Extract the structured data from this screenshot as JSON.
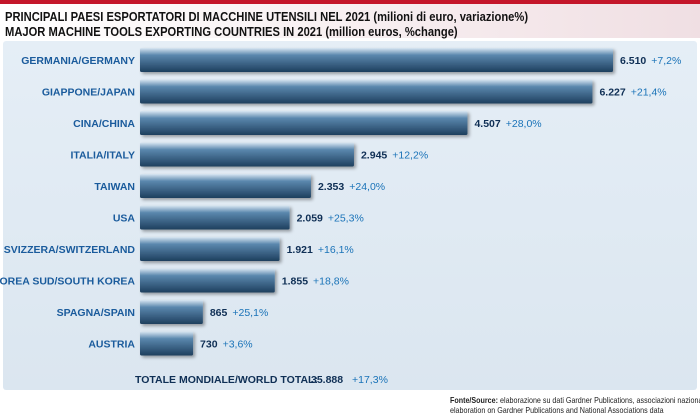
{
  "titles": {
    "line1": "PRINCIPALI PAESI ESPORTATORI DI MACCHINE UTENSILI NEL 2021 (milioni di euro, variazione%)",
    "line2": "MAJOR MACHINE TOOLS EXPORTING COUNTRIES IN 2021 (million euros, %change)"
  },
  "total": {
    "label": "TOTALE MONDIALE/WORLD TOTAL:",
    "value": "35.888",
    "change": "+17,3%"
  },
  "source": {
    "label": "Fonte/Source:",
    "line1": "elaborazione su dati Gardner Publications, associazioni nazionali/",
    "line2": "elaboration on Gardner Publications and National Associations data"
  },
  "colors": {
    "bar_fill": "#5a87ad",
    "bar_highlight": "#d8e6f2",
    "bar_dark": "#1e3f5e",
    "category_text": "#1a5b9c",
    "value_text": "#0f2f55",
    "change_text": "#1a73b8",
    "panel": "#e0eaf3",
    "accent_red": "#c4162a"
  },
  "chart_data": {
    "type": "bar",
    "orientation": "horizontal",
    "categories": [
      "GERMANIA/GERMANY",
      "GIAPPONE/JAPAN",
      "CINA/CHINA",
      "ITALIA/ITALY",
      "TAIWAN",
      "USA",
      "SVIZZERA/SWITZERLAND",
      "COREA SUD/SOUTH KOREA",
      "SPAGNA/SPAIN",
      "AUSTRIA"
    ],
    "values": [
      6510,
      6227,
      4507,
      2945,
      2353,
      2059,
      1921,
      1855,
      865,
      730
    ],
    "value_labels": [
      "6.510",
      "6.227",
      "4.507",
      "2.945",
      "2.353",
      "2.059",
      "1.921",
      "1.855",
      "865",
      "730"
    ],
    "change_labels": [
      "+7,2%",
      "+21,4%",
      "+28,0%",
      "+12,2%",
      "+24,0%",
      "+25,3%",
      "+16,1%",
      "+18,8%",
      "+25,1%",
      "+3,6%"
    ],
    "xlim": [
      0,
      6510
    ],
    "grid": false,
    "legend": "none"
  }
}
